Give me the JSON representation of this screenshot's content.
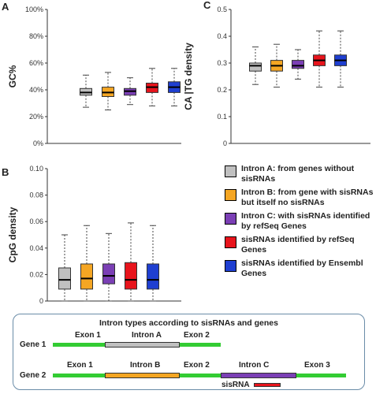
{
  "colors": {
    "intron_a": "#c0c0c0",
    "intron_b": "#f5a623",
    "intron_c": "#7b3fb5",
    "refseq": "#e8141c",
    "ensembl": "#1f3fd1",
    "exon": "#33cc33"
  },
  "chart_data": [
    {
      "panel": "A",
      "type": "box",
      "ylabel": "GC%",
      "ylim": [
        0,
        100
      ],
      "yticks": [
        "0%",
        "20%",
        "40%",
        "60%",
        "80%",
        "100%"
      ],
      "series": [
        {
          "color": "#c0c0c0",
          "whisker_low": 27,
          "q1": 36,
          "median": 38,
          "q3": 41,
          "whisker_high": 51
        },
        {
          "color": "#f5a623",
          "whisker_low": 25,
          "q1": 35,
          "median": 38,
          "q3": 42,
          "whisker_high": 53
        },
        {
          "color": "#7b3fb5",
          "whisker_low": 29,
          "q1": 36,
          "median": 39,
          "q3": 41,
          "whisker_high": 49
        },
        {
          "color": "#e8141c",
          "whisker_low": 28,
          "q1": 38,
          "median": 42,
          "q3": 45,
          "whisker_high": 56
        },
        {
          "color": "#1f3fd1",
          "whisker_low": 28,
          "q1": 38,
          "median": 42,
          "q3": 46,
          "whisker_high": 56
        }
      ]
    },
    {
      "panel": "B",
      "type": "box",
      "ylabel": "CpG density",
      "ylim": [
        0,
        0.1
      ],
      "yticks": [
        "0",
        "0.02",
        "0.04",
        "0.06",
        "0.08",
        "0.10"
      ],
      "series": [
        {
          "color": "#c0c0c0",
          "whisker_low": 0,
          "q1": 0.009,
          "median": 0.016,
          "q3": 0.025,
          "whisker_high": 0.05
        },
        {
          "color": "#f5a623",
          "whisker_low": 0,
          "q1": 0.009,
          "median": 0.017,
          "q3": 0.028,
          "whisker_high": 0.057
        },
        {
          "color": "#7b3fb5",
          "whisker_low": 0,
          "q1": 0.013,
          "median": 0.019,
          "q3": 0.028,
          "whisker_high": 0.051
        },
        {
          "color": "#e8141c",
          "whisker_low": 0,
          "q1": 0.009,
          "median": 0.016,
          "q3": 0.029,
          "whisker_high": 0.059
        },
        {
          "color": "#1f3fd1",
          "whisker_low": 0,
          "q1": 0.009,
          "median": 0.016,
          "q3": 0.028,
          "whisker_high": 0.057
        }
      ]
    },
    {
      "panel": "C",
      "type": "box",
      "ylabel": "CA |TG density",
      "ylim": [
        0,
        0.5
      ],
      "yticks": [
        "0",
        "0.1",
        "0.2",
        "0.3",
        "0.4",
        "0.5"
      ],
      "series": [
        {
          "color": "#c0c0c0",
          "whisker_low": 0.22,
          "q1": 0.27,
          "median": 0.29,
          "q3": 0.3,
          "whisker_high": 0.36
        },
        {
          "color": "#f5a623",
          "whisker_low": 0.21,
          "q1": 0.27,
          "median": 0.29,
          "q3": 0.31,
          "whisker_high": 0.37
        },
        {
          "color": "#7b3fb5",
          "whisker_low": 0.24,
          "q1": 0.28,
          "median": 0.29,
          "q3": 0.31,
          "whisker_high": 0.35
        },
        {
          "color": "#e8141c",
          "whisker_low": 0.21,
          "q1": 0.29,
          "median": 0.31,
          "q3": 0.33,
          "whisker_high": 0.42
        },
        {
          "color": "#1f3fd1",
          "whisker_low": 0.21,
          "q1": 0.29,
          "median": 0.31,
          "q3": 0.33,
          "whisker_high": 0.42
        }
      ]
    }
  ],
  "legend": [
    {
      "label": "Intron A: from genes without sisRNAs",
      "color": "#c0c0c0"
    },
    {
      "label": "Intron B: from gene with sisRNAs but itself no sisRNAs",
      "color": "#f5a623"
    },
    {
      "label": "Intron C: with sisRNAs identified by refSeq Genes",
      "color": "#7b3fb5"
    },
    {
      "label": "sisRNAs identified by refSeq Genes",
      "color": "#e8141c"
    },
    {
      "label": "sisRNAs identified by Ensembl Genes",
      "color": "#1f3fd1"
    }
  ],
  "diagram": {
    "title": "Intron types according to sisRNAs and genes",
    "gene1": {
      "label": "Gene 1",
      "exon1": "Exon 1",
      "intron": "Intron A",
      "exon2": "Exon 2"
    },
    "gene2": {
      "label": "Gene 2",
      "exon1": "Exon 1",
      "intron_b": "Intron B",
      "exon2": "Exon 2",
      "intron_c": "Intron C",
      "exon3": "Exon 3",
      "sisrna": "sisRNA"
    }
  }
}
